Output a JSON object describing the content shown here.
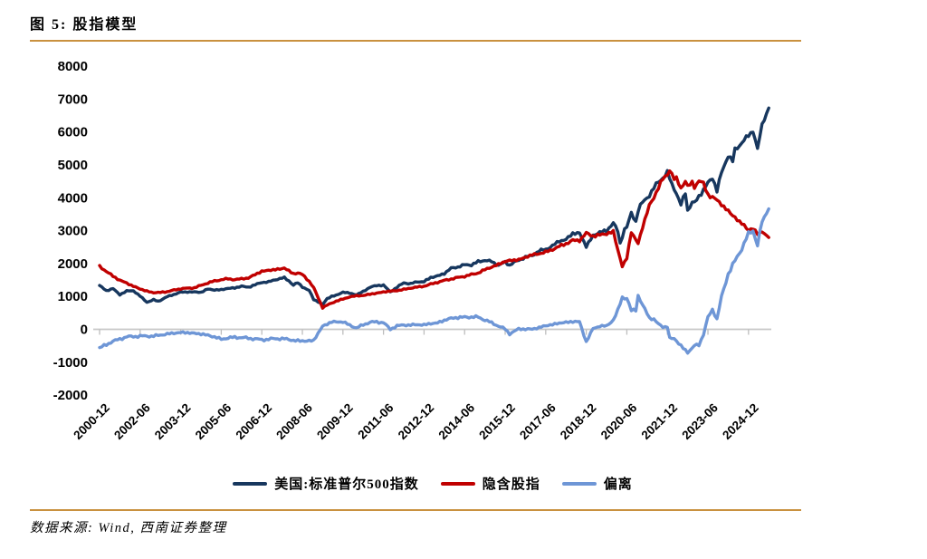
{
  "page": {
    "figure_title": "图 5: 股指模型",
    "source_note": "数据来源: Wind, 西南证券整理",
    "accent_color": "#C9913F"
  },
  "chart_data": {
    "type": "line",
    "title": "股指模型",
    "legend_position": "bottom",
    "grid": "zero-axis-line-only",
    "x_axis": {
      "unit": "months since 2000-12",
      "start_label": "2000-12",
      "end_of_data": "2025-09",
      "tick_interval_months": 18,
      "tick_labels": [
        "2000-12",
        "2002-06",
        "2003-12",
        "2005-06",
        "2006-12",
        "2008-06",
        "2009-12",
        "2011-06",
        "2012-12",
        "2014-06",
        "2015-12",
        "2017-06",
        "2018-12",
        "2020-06",
        "2021-12",
        "2023-06",
        "2024-12"
      ]
    },
    "y_axis": {
      "min": -2000,
      "max": 8000,
      "tick_step": 1000,
      "ticks": [
        8000,
        7000,
        6000,
        5000,
        4000,
        3000,
        2000,
        1000,
        0,
        -1000,
        -2000
      ]
    },
    "series": [
      {
        "name": "美国:标准普尔500指数",
        "color": "#17375E",
        "note": "approximate monthly values read from chart; months = offset from 2000-12",
        "months": [
          0,
          3,
          6,
          9,
          12,
          15,
          18,
          21,
          24,
          26,
          30,
          33,
          36,
          39,
          42,
          45,
          48,
          51,
          54,
          57,
          60,
          63,
          66,
          69,
          72,
          75,
          78,
          82,
          84,
          86,
          88,
          90,
          93,
          95,
          97,
          99,
          101,
          103,
          105,
          108,
          111,
          114,
          117,
          120,
          123,
          126,
          129,
          132,
          135,
          138,
          141,
          144,
          147,
          150,
          153,
          156,
          159,
          162,
          165,
          168,
          171,
          174,
          177,
          180,
          182,
          186,
          189,
          192,
          195,
          198,
          201,
          204,
          207,
          210,
          213,
          216,
          219,
          222,
          225,
          228,
          230,
          231,
          233,
          234,
          236,
          238,
          239,
          240,
          243,
          246,
          249,
          252,
          254,
          256,
          258,
          260,
          261,
          263,
          264,
          267,
          270,
          272,
          274,
          276,
          279,
          281,
          282,
          285,
          288,
          290,
          292,
          294,
          297
        ],
        "values": [
          1320,
          1160,
          1224,
          1040,
          1148,
          1165,
          990,
          815,
          880,
          841,
          975,
          1050,
          1112,
          1126,
          1120,
          1114,
          1212,
          1181,
          1191,
          1229,
          1248,
          1294,
          1270,
          1336,
          1418,
          1421,
          1503,
          1549,
          1468,
          1330,
          1400,
          1280,
          1165,
          896,
          826,
          735,
          920,
          990,
          1020,
          1115,
          1089,
          1031,
          1141,
          1258,
          1327,
          1321,
          1131,
          1258,
          1408,
          1362,
          1441,
          1426,
          1570,
          1606,
          1682,
          1848,
          1872,
          1960,
          1930,
          2059,
          2068,
          2063,
          1920,
          2044,
          1932,
          2099,
          2171,
          2239,
          2363,
          2423,
          2519,
          2674,
          2714,
          2902,
          2914,
          2507,
          2834,
          2942,
          2977,
          3231,
          2954,
          2585,
          3044,
          3100,
          3500,
          3270,
          3622,
          3756,
          3973,
          4298,
          4523,
          4766,
          4374,
          4132,
          3785,
          4130,
          3586,
          3856,
          3840,
          4109,
          4450,
          4589,
          4194,
          4770,
          5254,
          5096,
          5460,
          5648,
          5882,
          6040,
          5450,
          6205,
          6715
        ]
      },
      {
        "name": "隐含股指",
        "color": "#C00000",
        "note": "approximate monthly values read from chart; months = offset from 2000-12",
        "months": [
          0,
          3,
          6,
          9,
          12,
          15,
          18,
          21,
          24,
          27,
          30,
          33,
          36,
          39,
          42,
          45,
          48,
          51,
          54,
          57,
          60,
          63,
          66,
          69,
          72,
          75,
          78,
          82,
          84,
          86,
          88,
          90,
          93,
          95,
          97,
          99,
          101,
          103,
          105,
          108,
          111,
          114,
          117,
          120,
          123,
          126,
          129,
          132,
          135,
          138,
          141,
          144,
          147,
          150,
          153,
          156,
          159,
          162,
          165,
          168,
          171,
          174,
          177,
          180,
          182,
          186,
          189,
          192,
          195,
          198,
          201,
          204,
          207,
          210,
          213,
          216,
          219,
          222,
          225,
          228,
          230,
          232,
          234,
          236,
          238,
          239,
          241,
          244,
          246,
          248,
          250,
          252,
          253,
          255,
          256,
          258,
          260,
          261,
          263,
          264,
          266,
          268,
          270,
          272,
          274,
          276,
          278,
          280,
          282,
          284,
          286,
          288,
          290,
          292,
          294,
          297
        ],
        "values": [
          1900,
          1750,
          1600,
          1480,
          1390,
          1300,
          1210,
          1150,
          1100,
          1110,
          1130,
          1180,
          1220,
          1235,
          1250,
          1320,
          1400,
          1450,
          1500,
          1520,
          1500,
          1520,
          1550,
          1650,
          1750,
          1780,
          1800,
          1849,
          1760,
          1680,
          1700,
          1650,
          1450,
          1250,
          950,
          650,
          720,
          780,
          850,
          900,
          980,
          1000,
          1020,
          1050,
          1090,
          1120,
          1150,
          1160,
          1200,
          1240,
          1270,
          1300,
          1360,
          1420,
          1470,
          1520,
          1560,
          1600,
          1650,
          1700,
          1800,
          1880,
          1960,
          2050,
          2080,
          2100,
          2180,
          2250,
          2290,
          2330,
          2420,
          2500,
          2600,
          2680,
          2700,
          2900,
          2830,
          2850,
          2900,
          2950,
          2400,
          1900,
          2150,
          2950,
          2700,
          2600,
          3100,
          3750,
          4000,
          4300,
          4550,
          4700,
          4850,
          4550,
          4550,
          4300,
          4500,
          4300,
          4450,
          4340,
          4500,
          4400,
          4100,
          4000,
          3900,
          3800,
          3650,
          3500,
          3400,
          3250,
          3150,
          3000,
          3050,
          2900,
          2950,
          2780
        ]
      },
      {
        "name": "偏离",
        "color": "#6E96D6",
        "note": "deviation = S&P500 minus implied index; approximate values read from chart",
        "months": [
          0,
          6,
          12,
          18,
          24,
          30,
          36,
          42,
          48,
          54,
          60,
          66,
          72,
          78,
          82,
          86,
          90,
          95,
          99,
          103,
          108,
          111,
          114,
          120,
          126,
          129,
          132,
          138,
          144,
          150,
          156,
          162,
          168,
          174,
          180,
          182,
          186,
          192,
          198,
          204,
          210,
          213,
          216,
          219,
          222,
          225,
          228,
          230,
          232,
          234,
          236,
          238,
          239,
          241,
          244,
          246,
          248,
          250,
          252,
          253,
          255,
          258,
          261,
          263,
          264,
          266,
          268,
          270,
          272,
          274,
          276,
          279,
          282,
          285,
          288,
          290,
          292,
          294,
          297
        ],
        "values": [
          -580,
          -376,
          -242,
          -220,
          -220,
          -155,
          -108,
          -130,
          -188,
          -309,
          -252,
          -280,
          -332,
          -297,
          -300,
          -350,
          -370,
          -354,
          85,
          210,
          215,
          109,
          31,
          208,
          201,
          -19,
          98,
          122,
          126,
          186,
          328,
          360,
          359,
          183,
          -6,
          -148,
          -1,
          -11,
          93,
          174,
          222,
          214,
          -393,
          4,
          92,
          77,
          281,
          554,
          950,
          950,
          550,
          570,
          1022,
          728,
          331,
          298,
          148,
          54,
          66,
          -280,
          -297,
          -515,
          -714,
          -594,
          -500,
          -481,
          -177,
          350,
          589,
          294,
          970,
          1679,
          2060,
          2448,
          2882,
          2990,
          2550,
          3255,
          3650
        ]
      }
    ]
  }
}
